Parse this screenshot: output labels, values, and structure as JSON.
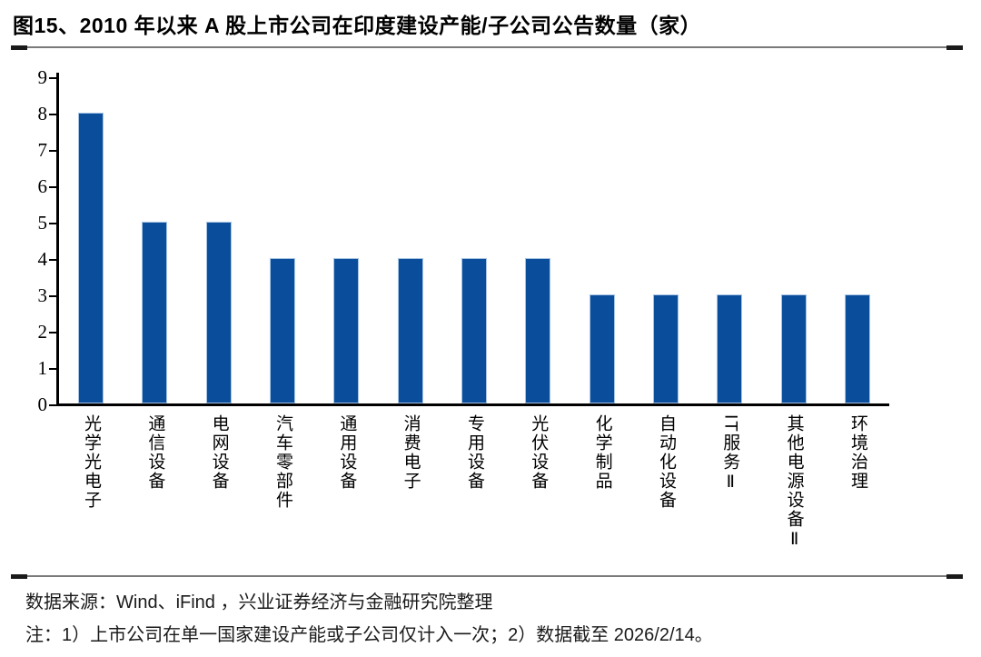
{
  "figure": {
    "title": "图15、2010 年以来 A 股上市公司在印度建设产能/子公司公告数量（家）"
  },
  "chart_data": {
    "type": "bar",
    "title": "图15、2010 年以来 A 股上市公司在印度建设产能/子公司公告数量（家）",
    "categories": [
      "光学光电子",
      "通信设备",
      "电网设备",
      "汽车零部件",
      "通用设备",
      "消费电子",
      "专用设备",
      "光伏设备",
      "化学制品",
      "自动化设备",
      "IT服务Ⅱ",
      "其他电源设备Ⅱ",
      "环境治理"
    ],
    "values": [
      8,
      5,
      5,
      4,
      4,
      4,
      4,
      4,
      3,
      3,
      3,
      3,
      3
    ],
    "xlabel": "",
    "ylabel": "",
    "ylim": [
      0,
      9
    ],
    "yticks": [
      0,
      1,
      2,
      3,
      4,
      5,
      6,
      7,
      8,
      9
    ],
    "grid": false,
    "legend": false,
    "bar_color": "#0A4E9B",
    "bar_border_color": "#A6C4E4",
    "axis_color": "#000000"
  },
  "footer": {
    "source": "数据来源：Wind、iFind ，兴业证券经济与金融研究院整理",
    "note": "注：1）上市公司在单一国家建设产能或子公司仅计入一次；2）数据截至 2026/2/14。"
  }
}
